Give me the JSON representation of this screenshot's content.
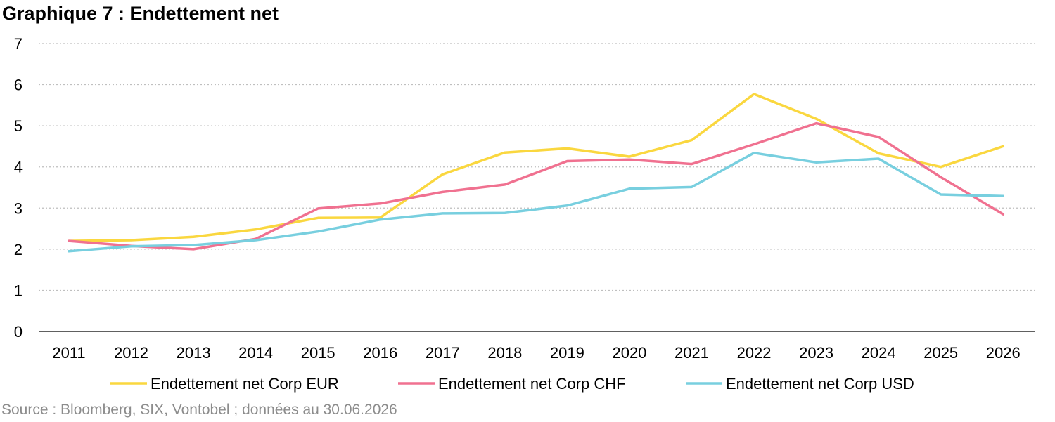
{
  "page": {
    "title": "Graphique 7 : Endettement net",
    "source": "Source : Bloomberg, SIX, Vontobel ; données au 30.06.2026"
  },
  "chart_data": {
    "type": "line",
    "title": "Graphique 7 : Endettement net",
    "xlabel": "",
    "ylabel": "",
    "categories": [
      "2011",
      "2012",
      "2013",
      "2014",
      "2015",
      "2016",
      "2017",
      "2018",
      "2019",
      "2020",
      "2021",
      "2022",
      "2023",
      "2024",
      "2025",
      "2026"
    ],
    "ylim": [
      0,
      7
    ],
    "yticks": [
      0,
      1,
      2,
      3,
      4,
      5,
      6,
      7
    ],
    "grid": "horizontal-dotted",
    "legend_position": "bottom",
    "series": [
      {
        "name": "Endettement net Corp EUR",
        "color": "#fad73f",
        "values": [
          2.2,
          2.22,
          2.3,
          2.48,
          2.76,
          2.77,
          3.82,
          4.35,
          4.45,
          4.25,
          4.65,
          5.77,
          5.17,
          4.33,
          4.0,
          4.5
        ]
      },
      {
        "name": "Endettement net Corp CHF",
        "color": "#f07190",
        "values": [
          2.2,
          2.08,
          2.0,
          2.25,
          2.99,
          3.11,
          3.39,
          3.57,
          4.14,
          4.18,
          4.07,
          4.55,
          5.06,
          4.73,
          3.75,
          2.85
        ]
      },
      {
        "name": "Endettement net Corp USD",
        "color": "#78cfdf",
        "values": [
          1.95,
          2.07,
          2.1,
          2.22,
          2.43,
          2.72,
          2.87,
          2.88,
          3.06,
          3.47,
          3.51,
          4.34,
          4.11,
          4.2,
          3.33,
          3.29
        ]
      }
    ]
  }
}
